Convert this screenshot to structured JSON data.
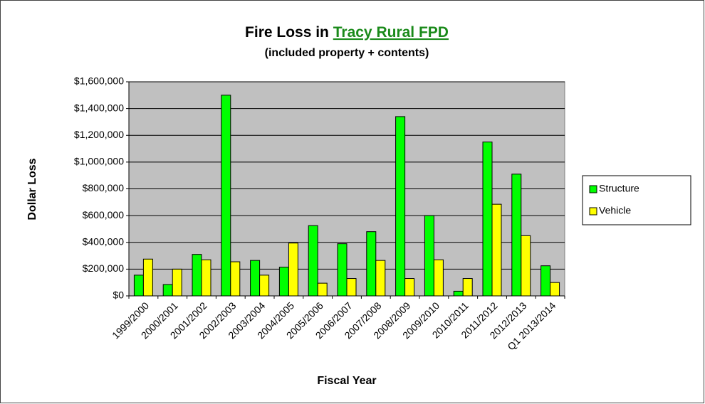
{
  "chart_data": {
    "type": "bar",
    "title": [
      "Fire Loss in",
      "Tracy Rural FPD"
    ],
    "subtitle": "(included property + contents)",
    "y_label": "Dollar Loss",
    "x_label": "Fiscal Year",
    "categories": [
      "1999/2000",
      "2000/2001",
      "2001/2002",
      "2002/2003",
      "2003/2004",
      "2004/2005",
      "2005/2006",
      "2006/2007",
      "2007/2008",
      "2008/2009",
      "2009/2010",
      "2010/2011",
      "2011/2012",
      "2012/2013",
      "Q1 2013/2014"
    ],
    "series": [
      {
        "name": "Structure",
        "color": "#00ff00",
        "values": [
          155000,
          85000,
          310000,
          1500000,
          265000,
          215000,
          525000,
          390000,
          480000,
          1340000,
          600000,
          35000,
          1150000,
          910000,
          225000
        ]
      },
      {
        "name": "Vehicle",
        "color": "#ffff00",
        "values": [
          275000,
          200000,
          270000,
          255000,
          155000,
          395000,
          95000,
          130000,
          265000,
          130000,
          270000,
          130000,
          685000,
          450000,
          100000
        ]
      }
    ],
    "ylim": [
      0,
      1600000
    ],
    "yticks": [
      {
        "value": 0,
        "label": "$0"
      },
      {
        "value": 200000,
        "label": "$200,000"
      },
      {
        "value": 400000,
        "label": "$400,000"
      },
      {
        "value": 600000,
        "label": "$600,000"
      },
      {
        "value": 800000,
        "label": "$800,000"
      },
      {
        "value": 1000000,
        "label": "$1,000,000"
      },
      {
        "value": 1200000,
        "label": "$1,200,000"
      },
      {
        "value": 1400000,
        "label": "$1,400,000"
      },
      {
        "value": 1600000,
        "label": "$1,600,000"
      }
    ],
    "grid": true,
    "legend": "right"
  }
}
